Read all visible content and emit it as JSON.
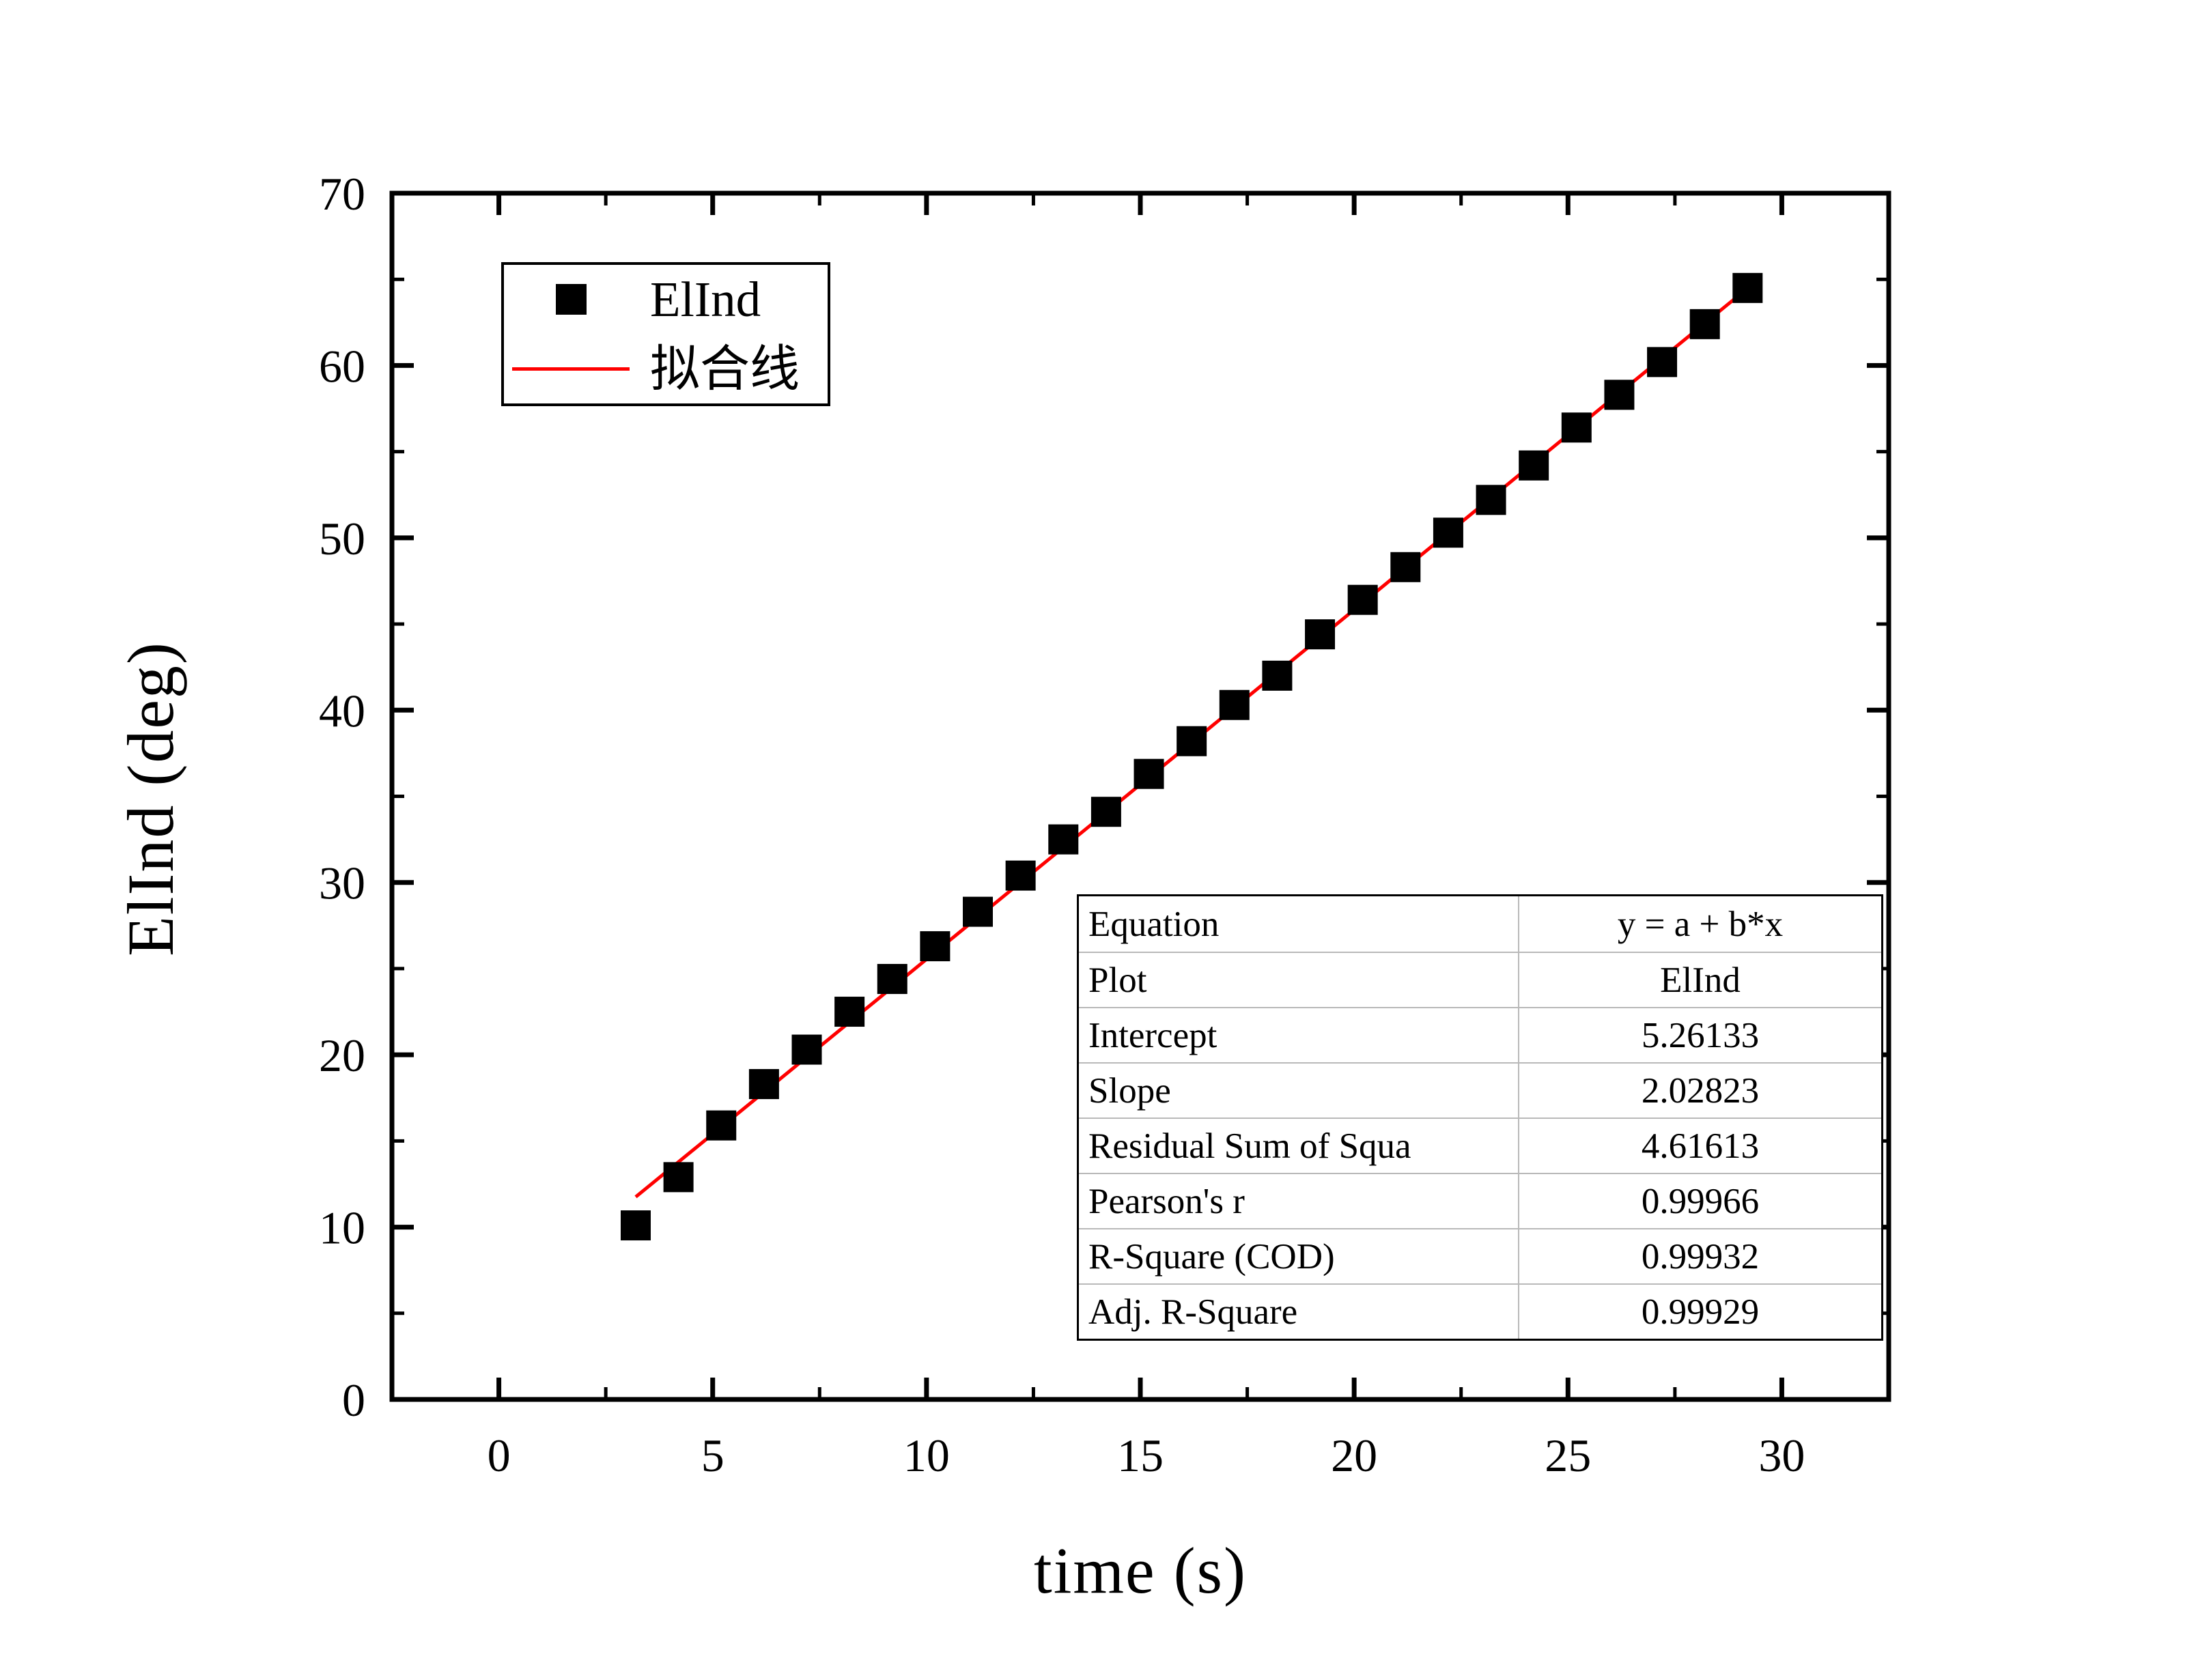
{
  "chart_data": {
    "type": "scatter",
    "title": "",
    "xlabel": "time (s)",
    "ylabel": "ElInd (deg)",
    "xlim": [
      -2.5,
      32.5
    ],
    "ylim": [
      0,
      70
    ],
    "x_major_ticks": [
      0,
      5,
      10,
      15,
      20,
      25,
      30
    ],
    "x_minor_ticks": [
      2.5,
      7.5,
      12.5,
      17.5,
      22.5,
      27.5
    ],
    "y_major_ticks": [
      0,
      10,
      20,
      30,
      40,
      50,
      60,
      70
    ],
    "y_minor_ticks": [
      5,
      15,
      25,
      35,
      45,
      55,
      65
    ],
    "grid": false,
    "legend_position": "upper-left-inside",
    "series": [
      {
        "name": "ElInd",
        "type": "scatter",
        "marker": "filled-square",
        "color": "#000000",
        "x": [
          3.2,
          4.2,
          5.2,
          6.2,
          7.2,
          8.2,
          9.2,
          10.2,
          11.2,
          12.2,
          13.2,
          14.2,
          15.2,
          16.2,
          17.2,
          18.2,
          19.2,
          20.2,
          21.2,
          22.2,
          23.2,
          24.2,
          25.2,
          26.2,
          27.2,
          28.2,
          29.2
        ],
        "y": [
          10.1,
          12.9,
          15.9,
          18.3,
          20.3,
          22.5,
          24.4,
          26.3,
          28.3,
          30.4,
          32.5,
          34.1,
          36.3,
          38.2,
          40.3,
          42.0,
          44.4,
          46.4,
          48.3,
          50.3,
          52.2,
          54.2,
          56.4,
          58.3,
          60.2,
          62.4,
          64.5
        ]
      },
      {
        "name": "拟合线",
        "type": "line",
        "color": "#ff0000",
        "fit": {
          "intercept": 5.26133,
          "slope": 2.02823,
          "x_start": 3.2,
          "x_end": 29.25
        }
      }
    ]
  },
  "legend": {
    "entries": [
      {
        "symbol": "black-square-marker",
        "label": "ElInd"
      },
      {
        "symbol": "red-fit-line",
        "label": "拟合线"
      }
    ]
  },
  "stats_table": {
    "rows": [
      {
        "label": "Equation",
        "value": "y = a + b*x"
      },
      {
        "label": "Plot",
        "value": "ElInd"
      },
      {
        "label": "Intercept",
        "value": "5.26133"
      },
      {
        "label": "Slope",
        "value": "2.02823"
      },
      {
        "label": "Residual Sum of Squa",
        "value": "4.61613"
      },
      {
        "label": "Pearson's r",
        "value": "0.99966"
      },
      {
        "label": "R-Square (COD)",
        "value": "0.99932"
      },
      {
        "label": "Adj. R-Square",
        "value": "0.99929"
      }
    ]
  },
  "colors": {
    "marker": "#000000",
    "fit_line": "#ff0000",
    "axis": "#000000",
    "table_grid": "#b9b9b9",
    "background": "#ffffff"
  }
}
